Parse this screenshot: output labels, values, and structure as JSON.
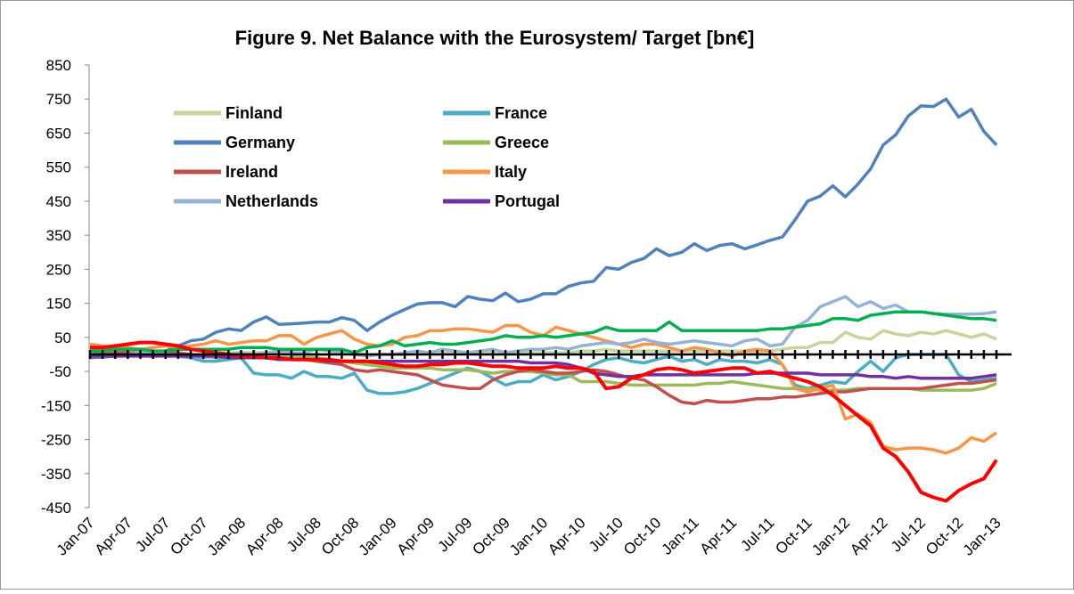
{
  "chart_data": {
    "type": "line",
    "title": "Figure 9.  Net Balance with the Eurosystem/ Target [bn€]",
    "categories": [
      "Jan-07",
      null,
      null,
      "Apr-07",
      null,
      null,
      "Jul-07",
      null,
      null,
      "Oct-07",
      null,
      null,
      "Jan-08",
      null,
      null,
      "Apr-08",
      null,
      null,
      "Jul-08",
      null,
      null,
      "Oct-08",
      null,
      null,
      "Jan-09",
      null,
      null,
      "Apr-09",
      null,
      null,
      "Jul-09",
      null,
      null,
      "Oct-09",
      null,
      null,
      "Jan-10",
      null,
      null,
      "Apr-10",
      null,
      null,
      "Jul-10",
      null,
      null,
      "Oct-10",
      null,
      null,
      "Jan-11",
      null,
      null,
      "Apr-11",
      null,
      null,
      "Jul-11",
      null,
      null,
      "Oct-11",
      null,
      null,
      "Jan-12",
      null,
      null,
      "Apr-12",
      null,
      null,
      "Jul-12",
      null,
      null,
      "Oct-12",
      null,
      null,
      "Jan-13"
    ],
    "ylim": [
      -450,
      850
    ],
    "yticks": [
      -450,
      -350,
      -250,
      -150,
      -50,
      50,
      150,
      250,
      350,
      450,
      550,
      650,
      750,
      850
    ],
    "series": [
      {
        "name": "Finland",
        "color": "#c3d69b",
        "values": [
          5,
          5,
          5,
          5,
          5,
          0,
          0,
          0,
          0,
          0,
          5,
          5,
          5,
          5,
          5,
          5,
          0,
          0,
          0,
          0,
          5,
          5,
          0,
          0,
          0,
          0,
          5,
          5,
          5,
          5,
          5,
          5,
          5,
          5,
          5,
          5,
          5,
          5,
          5,
          10,
          10,
          15,
          10,
          10,
          10,
          10,
          10,
          10,
          10,
          10,
          10,
          10,
          10,
          5,
          10,
          15,
          20,
          20,
          35,
          35,
          65,
          50,
          45,
          70,
          60,
          55,
          65,
          60,
          70,
          60,
          50,
          60,
          45
        ]
      },
      {
        "name": "France",
        "color": "#4bacc6",
        "values": [
          10,
          10,
          10,
          5,
          5,
          0,
          0,
          -5,
          -10,
          -20,
          -20,
          -15,
          -10,
          -55,
          -60,
          -60,
          -70,
          -50,
          -65,
          -65,
          -70,
          -55,
          -105,
          -115,
          -115,
          -110,
          -100,
          -85,
          -70,
          -55,
          -40,
          -50,
          -70,
          -90,
          -80,
          -80,
          -60,
          -75,
          -65,
          -50,
          -30,
          -15,
          -10,
          -20,
          -25,
          -15,
          -5,
          -20,
          -15,
          -30,
          -15,
          -20,
          -20,
          -25,
          -15,
          -30,
          -90,
          -100,
          -90,
          -80,
          -85,
          -50,
          -20,
          -50,
          -10,
          0,
          0,
          0,
          0,
          -60,
          -80,
          -75,
          -70
        ]
      },
      {
        "name": "Germany",
        "color": "#4f81bd",
        "values": [
          -10,
          -8,
          -5,
          0,
          2,
          5,
          10,
          25,
          40,
          45,
          65,
          75,
          70,
          95,
          110,
          88,
          90,
          92,
          95,
          95,
          108,
          100,
          70,
          95,
          115,
          132,
          148,
          152,
          152,
          140,
          170,
          162,
          158,
          180,
          155,
          162,
          178,
          178,
          200,
          210,
          215,
          255,
          250,
          270,
          282,
          310,
          290,
          300,
          325,
          305,
          320,
          325,
          310,
          322,
          335,
          345,
          395,
          450,
          465,
          495,
          463,
          500,
          545,
          615,
          645,
          700,
          730,
          728,
          750,
          697,
          720,
          655,
          615
        ]
      },
      {
        "name": "Greece",
        "color": "#9bbb59",
        "values": [
          10,
          5,
          5,
          5,
          0,
          0,
          -5,
          -5,
          -5,
          -5,
          -10,
          -10,
          -10,
          -10,
          -10,
          -10,
          -10,
          -10,
          -10,
          -15,
          -20,
          -25,
          -30,
          -35,
          -40,
          -40,
          -40,
          -40,
          -45,
          -45,
          -45,
          -50,
          -55,
          -50,
          -50,
          -50,
          -55,
          -60,
          -60,
          -80,
          -80,
          -80,
          -85,
          -90,
          -90,
          -90,
          -90,
          -90,
          -90,
          -85,
          -85,
          -80,
          -85,
          -90,
          -95,
          -100,
          -100,
          -100,
          -105,
          -105,
          -105,
          -100,
          -100,
          -100,
          -100,
          -100,
          -105,
          -105,
          -105,
          -105,
          -105,
          -100,
          -85
        ]
      },
      {
        "name": "Ireland",
        "color": "#c0504d",
        "values": [
          0,
          0,
          5,
          5,
          5,
          5,
          10,
          5,
          0,
          -5,
          -5,
          -5,
          -10,
          -10,
          -10,
          -15,
          -15,
          -15,
          -20,
          -25,
          -30,
          -45,
          -50,
          -45,
          -50,
          -55,
          -60,
          -75,
          -90,
          -95,
          -100,
          -100,
          -75,
          -60,
          -50,
          -45,
          -50,
          -55,
          -55,
          -50,
          -45,
          -50,
          -60,
          -70,
          -75,
          -95,
          -120,
          -140,
          -145,
          -135,
          -140,
          -140,
          -135,
          -130,
          -130,
          -125,
          -125,
          -120,
          -115,
          -110,
          -110,
          -105,
          -100,
          -100,
          -100,
          -100,
          -100,
          -95,
          -90,
          -85,
          -85,
          -80,
          -75
        ]
      },
      {
        "name": "Italy",
        "color": "#f79646",
        "values": [
          30,
          25,
          20,
          20,
          15,
          20,
          25,
          20,
          25,
          30,
          40,
          30,
          35,
          40,
          40,
          55,
          55,
          30,
          50,
          60,
          70,
          45,
          30,
          25,
          30,
          50,
          55,
          70,
          70,
          75,
          75,
          70,
          65,
          85,
          85,
          65,
          55,
          80,
          70,
          60,
          50,
          40,
          30,
          20,
          30,
          30,
          20,
          10,
          20,
          15,
          5,
          -5,
          10,
          15,
          10,
          -30,
          -100,
          -110,
          -100,
          -90,
          -190,
          -175,
          -200,
          -270,
          -280,
          -275,
          -275,
          -280,
          -290,
          -275,
          -245,
          -255,
          -230
        ]
      },
      {
        "name": "Netherlands",
        "color": "#95b3d7",
        "values": [
          0,
          -5,
          -5,
          0,
          5,
          5,
          0,
          0,
          -5,
          -10,
          -5,
          0,
          5,
          0,
          5,
          10,
          5,
          5,
          15,
          10,
          5,
          0,
          -5,
          0,
          0,
          5,
          10,
          5,
          15,
          10,
          5,
          10,
          15,
          5,
          10,
          15,
          15,
          20,
          15,
          25,
          30,
          35,
          30,
          35,
          45,
          35,
          30,
          35,
          40,
          35,
          30,
          25,
          40,
          45,
          25,
          30,
          80,
          100,
          140,
          155,
          170,
          140,
          155,
          135,
          145,
          125,
          125,
          120,
          118,
          118,
          118,
          120,
          125
        ]
      },
      {
        "name": "Portugal",
        "color": "#7030a0",
        "values": [
          -5,
          -5,
          -5,
          -5,
          -5,
          -5,
          -5,
          -5,
          -5,
          -5,
          -5,
          -10,
          -10,
          -10,
          -10,
          -15,
          -15,
          -15,
          -15,
          -20,
          -20,
          -20,
          -20,
          -20,
          -20,
          -20,
          -20,
          -20,
          -20,
          -20,
          -20,
          -20,
          -20,
          -20,
          -20,
          -25,
          -25,
          -25,
          -30,
          -40,
          -55,
          -60,
          -65,
          -65,
          -60,
          -60,
          -60,
          -60,
          -60,
          -60,
          -60,
          -60,
          -60,
          -55,
          -55,
          -55,
          -55,
          -55,
          -60,
          -60,
          -60,
          -60,
          -65,
          -65,
          -70,
          -65,
          -70,
          -70,
          -70,
          -70,
          -70,
          -65,
          -60
        ]
      },
      {
        "color": "#00b050",
        "values": [
          10,
          10,
          15,
          15,
          15,
          10,
          10,
          15,
          15,
          15,
          15,
          15,
          20,
          20,
          20,
          15,
          15,
          15,
          15,
          15,
          15,
          5,
          20,
          25,
          40,
          25,
          30,
          35,
          30,
          30,
          35,
          40,
          45,
          55,
          50,
          50,
          55,
          50,
          55,
          60,
          65,
          80,
          70,
          70,
          70,
          70,
          95,
          70,
          70,
          70,
          70,
          70,
          70,
          70,
          75,
          75,
          80,
          85,
          90,
          105,
          105,
          100,
          115,
          120,
          125,
          125,
          125,
          120,
          115,
          110,
          105,
          105,
          100
        ]
      },
      {
        "color": "#ff0000",
        "values": [
          20,
          20,
          25,
          30,
          35,
          35,
          30,
          25,
          15,
          10,
          5,
          0,
          -5,
          -5,
          -10,
          -10,
          -15,
          -15,
          -15,
          -15,
          -20,
          -20,
          -20,
          -25,
          -30,
          -35,
          -35,
          -30,
          -30,
          -25,
          -25,
          -30,
          -35,
          -35,
          -40,
          -40,
          -40,
          -35,
          -40,
          -40,
          -50,
          -100,
          -95,
          -70,
          -60,
          -45,
          -40,
          -45,
          -55,
          -50,
          -45,
          -40,
          -40,
          -55,
          -50,
          -60,
          -70,
          -80,
          -95,
          -120,
          -150,
          -180,
          -210,
          -275,
          -300,
          -345,
          -405,
          -420,
          -430,
          -400,
          -380,
          -365,
          -310
        ]
      }
    ]
  }
}
